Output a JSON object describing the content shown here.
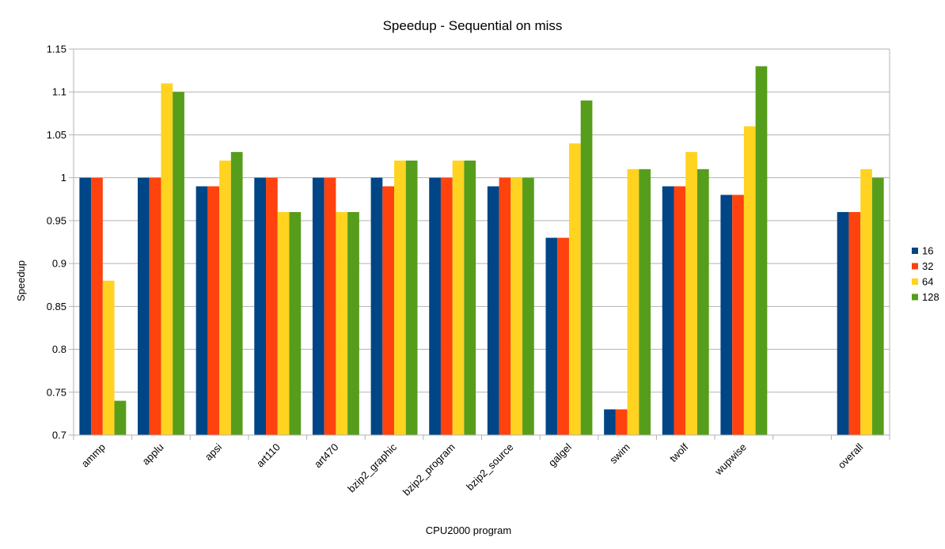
{
  "chart_data": {
    "type": "bar",
    "title": "Speedup - Sequential on miss",
    "xlabel": "CPU2000 program",
    "ylabel": "Speedup",
    "ylim": [
      0.7,
      1.15
    ],
    "yticks": [
      "0.7",
      "0.75",
      "0.8",
      "0.85",
      "0.9",
      "0.95",
      "1",
      "1.05",
      "1.1",
      "1.15"
    ],
    "grid": true,
    "legend_position": "right",
    "categories": [
      "ammp",
      "applu",
      "apsi",
      "art110",
      "art470",
      "bzip2_graphic",
      "bzip2_program",
      "bzip2_source",
      "galgel",
      "swim",
      "twolf",
      "wupwise",
      "",
      "overall"
    ],
    "series": [
      {
        "name": "16",
        "color": "#004586",
        "values": [
          1.0,
          1.0,
          0.99,
          1.0,
          1.0,
          1.0,
          1.0,
          0.99,
          0.93,
          0.73,
          0.99,
          0.98,
          null,
          0.96
        ]
      },
      {
        "name": "32",
        "color": "#ff420e",
        "values": [
          1.0,
          1.0,
          0.99,
          1.0,
          1.0,
          0.99,
          1.0,
          1.0,
          0.93,
          0.73,
          0.99,
          0.98,
          null,
          0.96
        ]
      },
      {
        "name": "64",
        "color": "#ffd320",
        "values": [
          0.88,
          1.11,
          1.02,
          0.96,
          0.96,
          1.02,
          1.02,
          1.0,
          1.04,
          1.01,
          1.03,
          1.06,
          null,
          1.01
        ]
      },
      {
        "name": "128",
        "color": "#579d1c",
        "values": [
          0.74,
          1.1,
          1.03,
          0.96,
          0.96,
          1.02,
          1.02,
          1.0,
          1.09,
          1.01,
          1.01,
          1.13,
          null,
          1.0
        ]
      }
    ]
  }
}
